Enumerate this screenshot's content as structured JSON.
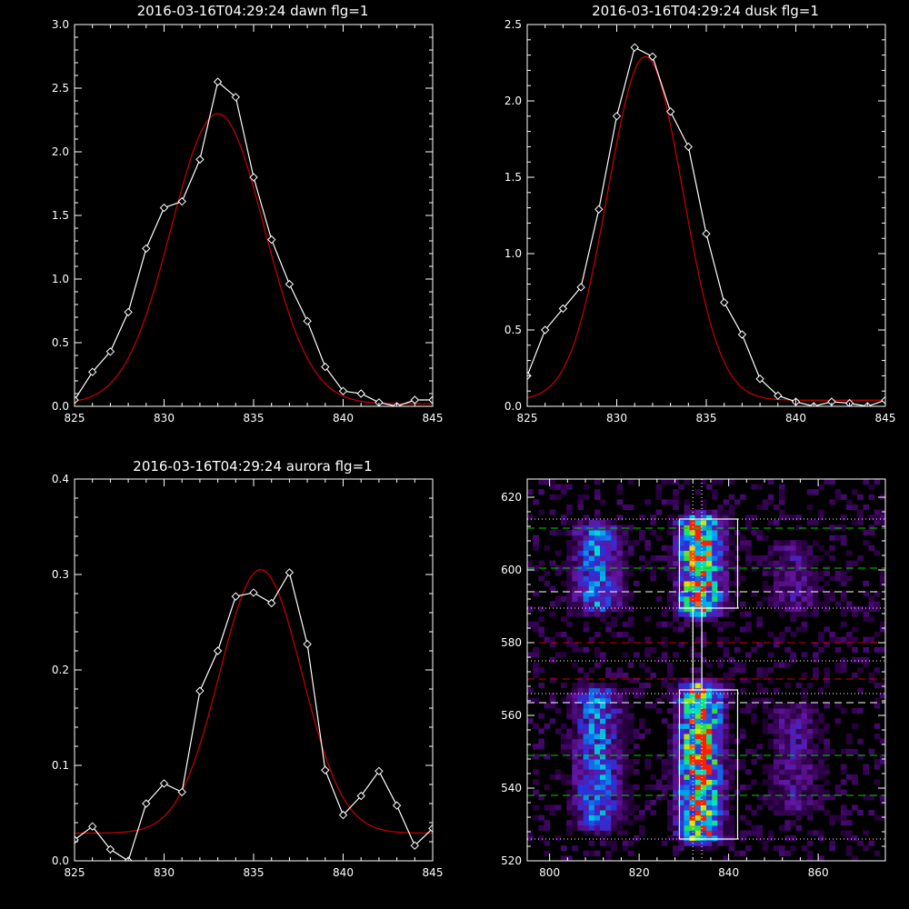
{
  "colors": {
    "background": "#000000",
    "axes": "#ffffff",
    "data_line": "#ffffff",
    "fit_line": "#cc0000"
  },
  "chart_data": [
    {
      "type": "line",
      "title": "2016-03-16T04:29:24 dawn flg=1",
      "xlim": [
        825,
        845
      ],
      "ylim": [
        0,
        3.0
      ],
      "xticks": [
        "825",
        "830",
        "835",
        "840",
        "845"
      ],
      "yticks": [
        "0.0",
        "0.5",
        "1.0",
        "1.5",
        "2.0",
        "2.5",
        "3.0"
      ],
      "series": [
        {
          "style": "white-diamonds",
          "x": [
            825,
            826,
            827,
            828,
            829,
            830,
            831,
            832,
            833,
            834,
            835,
            836,
            837,
            838,
            839,
            840,
            841,
            842,
            843,
            844,
            845
          ],
          "y": [
            0.05,
            0.27,
            0.43,
            0.74,
            1.24,
            1.56,
            1.61,
            1.94,
            2.55,
            2.43,
            1.8,
            1.31,
            0.96,
            0.67,
            0.31,
            0.12,
            0.1,
            0.03,
            0.0,
            0.05,
            0.05
          ]
        },
        {
          "style": "red-gaussian-fit",
          "amplitude": 2.28,
          "center": 833.0,
          "sigma": 2.6,
          "offset": 0.02
        }
      ]
    },
    {
      "type": "line",
      "title": "2016-03-16T04:29:24 dusk flg=1",
      "xlim": [
        825,
        845
      ],
      "ylim": [
        0,
        2.5
      ],
      "xticks": [
        "825",
        "830",
        "835",
        "840",
        "845"
      ],
      "yticks": [
        "0.0",
        "0.5",
        "1.0",
        "1.5",
        "2.0",
        "2.5"
      ],
      "series": [
        {
          "style": "white-diamonds",
          "x": [
            825,
            826,
            827,
            828,
            829,
            830,
            831,
            832,
            833,
            834,
            835,
            836,
            837,
            838,
            839,
            840,
            841,
            842,
            843,
            844,
            845
          ],
          "y": [
            0.2,
            0.5,
            0.64,
            0.78,
            1.29,
            1.9,
            2.35,
            2.29,
            1.93,
            1.7,
            1.13,
            0.68,
            0.47,
            0.18,
            0.07,
            0.03,
            0.0,
            0.03,
            0.02,
            0.0,
            0.04
          ]
        },
        {
          "style": "red-gaussian-fit",
          "amplitude": 2.25,
          "center": 831.6,
          "sigma": 2.1,
          "offset": 0.04
        }
      ]
    },
    {
      "type": "line",
      "title": "2016-03-16T04:29:24 aurora flg=1",
      "xlim": [
        825,
        845
      ],
      "ylim": [
        0,
        0.4
      ],
      "xticks": [
        "825",
        "830",
        "835",
        "840",
        "845"
      ],
      "yticks": [
        "0.0",
        "0.1",
        "0.2",
        "0.3",
        "0.4"
      ],
      "series": [
        {
          "style": "white-diamonds",
          "x": [
            825,
            826,
            827,
            828,
            829,
            830,
            831,
            832,
            833,
            834,
            835,
            836,
            837,
            838,
            839,
            840,
            841,
            842,
            843,
            844,
            845
          ],
          "y": [
            0.022,
            0.036,
            0.012,
            0.0,
            0.06,
            0.081,
            0.072,
            0.178,
            0.22,
            0.277,
            0.281,
            0.27,
            0.302,
            0.227,
            0.095,
            0.048,
            0.068,
            0.094,
            0.058,
            0.016,
            0.034
          ]
        },
        {
          "style": "red-gaussian-fit",
          "amplitude": 0.276,
          "center": 835.4,
          "sigma": 2.3,
          "offset": 0.029
        }
      ]
    },
    {
      "type": "heatmap",
      "title": "",
      "xlim": [
        795,
        875
      ],
      "ylim": [
        520,
        625
      ],
      "xticks": [
        "800",
        "820",
        "840",
        "860"
      ],
      "yticks": [
        "520",
        "540",
        "560",
        "580",
        "600",
        "620"
      ],
      "colormap": "purple-blue-cyan-green-yellow-red",
      "emission_columns": [
        {
          "x_center": 810,
          "x_width": 4.0,
          "y_ranges": [
            [
              590,
              610
            ],
            [
              530,
              565
            ]
          ],
          "peak": 0.55
        },
        {
          "x_center": 833,
          "x_width": 3.5,
          "y_ranges": [
            [
              589,
              612
            ],
            [
              527,
              566
            ]
          ],
          "peak": 1.0
        },
        {
          "x_center": 854,
          "x_width": 4.5,
          "y_ranges": [
            [
              590,
              605
            ],
            [
              535,
              560
            ]
          ],
          "peak": 0.3
        }
      ],
      "hlines": [
        {
          "y": 611.5,
          "color": "#00cc00",
          "style": "dashed"
        },
        {
          "y": 600.5,
          "color": "#00cc00",
          "style": "dashed"
        },
        {
          "y": 594,
          "color": "#ffffff",
          "style": "dashed"
        },
        {
          "y": 580,
          "color": "#cc0000",
          "style": "dashed"
        },
        {
          "y": 570,
          "color": "#cc0000",
          "style": "dashed"
        },
        {
          "y": 563.5,
          "color": "#ffffff",
          "style": "dashed"
        },
        {
          "y": 549,
          "color": "#00cc00",
          "style": "dashed"
        },
        {
          "y": 538,
          "color": "#00cc00",
          "style": "dashed"
        },
        {
          "y": 614,
          "color": "#ffffff",
          "style": "dotted"
        },
        {
          "y": 589.5,
          "color": "#ffffff",
          "style": "dotted"
        },
        {
          "y": 575,
          "color": "#ffffff",
          "style": "dotted"
        },
        {
          "y": 566,
          "color": "#ffffff",
          "style": "dotted"
        },
        {
          "y": 526,
          "color": "#ffffff",
          "style": "dotted"
        }
      ],
      "vlines": [
        {
          "x": 832,
          "color": "#ffffff",
          "style": "dotted"
        },
        {
          "x": 834,
          "color": "#ffffff",
          "style": "dotted"
        }
      ],
      "boxes": [
        {
          "x": [
            829,
            842
          ],
          "y": [
            589.5,
            614
          ]
        },
        {
          "x": [
            829,
            842
          ],
          "y": [
            526,
            567
          ]
        },
        {
          "x": [
            832,
            834
          ],
          "y": [
            567,
            589.5
          ]
        }
      ]
    }
  ]
}
